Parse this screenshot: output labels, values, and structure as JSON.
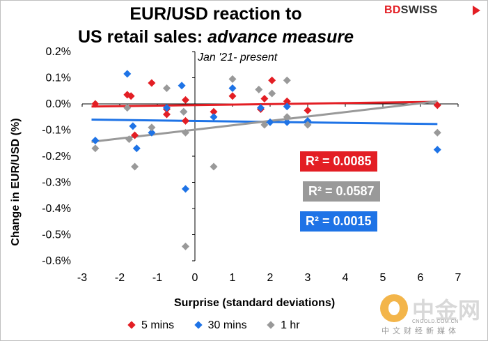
{
  "chart_data": {
    "type": "scatter",
    "title_line1": "EUR/USD reaction to",
    "title_line2_plain": "US retail sales: ",
    "title_line2_italic": "advance measure",
    "subtitle": "Jan '21- present",
    "xlabel": "Surprise (standard deviations)",
    "ylabel": "Change in EUR/USD  (%)",
    "xlim": [
      -3,
      7
    ],
    "ylim": [
      -0.6,
      0.2
    ],
    "x_ticks": [
      -3,
      -2,
      -1,
      0,
      1,
      2,
      3,
      4,
      5,
      6,
      7
    ],
    "x_tick_labels": [
      "-3",
      "-2",
      "-1",
      "0",
      "1",
      "2",
      "3",
      "4",
      "5",
      "6",
      "7"
    ],
    "y_ticks": [
      0.2,
      0.1,
      0.0,
      -0.1,
      -0.2,
      -0.3,
      -0.4,
      -0.5,
      -0.6
    ],
    "y_tick_labels": [
      "0.2%",
      "0.1%",
      "0.0%",
      "-0.1%",
      "-0.2%",
      "-0.3%",
      "-0.4%",
      "-0.5%",
      "-0.6%"
    ],
    "grid": false,
    "series": [
      {
        "name": "5 mins",
        "color": "#e31e24",
        "marker": "diamond",
        "points": [
          [
            -2.65,
            0.0
          ],
          [
            -1.8,
            0.035
          ],
          [
            -1.7,
            0.03
          ],
          [
            -1.6,
            -0.12
          ],
          [
            -1.15,
            0.08
          ],
          [
            -0.75,
            -0.04
          ],
          [
            -0.75,
            -0.02
          ],
          [
            -0.25,
            -0.065
          ],
          [
            -0.25,
            0.015
          ],
          [
            0.5,
            -0.03
          ],
          [
            1.0,
            0.03
          ],
          [
            1.75,
            -0.02
          ],
          [
            1.85,
            0.02
          ],
          [
            2.05,
            0.09
          ],
          [
            2.45,
            0.01
          ],
          [
            3.0,
            -0.025
          ],
          [
            6.45,
            -0.005
          ]
        ],
        "trend": {
          "x": [
            -2.75,
            6.45
          ],
          "y": [
            -0.01,
            0.008
          ]
        },
        "r2_label": "R² = 0.0085"
      },
      {
        "name": "30 mins",
        "color": "#1e73e6",
        "marker": "diamond",
        "points": [
          [
            -2.65,
            -0.14
          ],
          [
            -1.8,
            0.115
          ],
          [
            -1.65,
            -0.085
          ],
          [
            -1.55,
            -0.17
          ],
          [
            -1.15,
            -0.11
          ],
          [
            -0.75,
            -0.015
          ],
          [
            -0.35,
            0.07
          ],
          [
            -0.3,
            -0.03
          ],
          [
            -0.25,
            -0.325
          ],
          [
            0.5,
            -0.05
          ],
          [
            1.0,
            0.06
          ],
          [
            1.75,
            -0.015
          ],
          [
            2.0,
            -0.07
          ],
          [
            2.45,
            -0.07
          ],
          [
            2.45,
            -0.01
          ],
          [
            3.0,
            -0.065
          ],
          [
            6.45,
            -0.175
          ]
        ],
        "trend": {
          "x": [
            -2.75,
            6.45
          ],
          "y": [
            -0.06,
            -0.077
          ]
        },
        "r2_label": "R² = 0.0015"
      },
      {
        "name": "1 hr",
        "color": "#999999",
        "marker": "diamond",
        "points": [
          [
            -2.65,
            -0.17
          ],
          [
            -1.8,
            -0.015
          ],
          [
            -1.75,
            -0.135
          ],
          [
            -1.6,
            -0.24
          ],
          [
            -1.15,
            -0.09
          ],
          [
            -0.75,
            0.06
          ],
          [
            -0.3,
            -0.03
          ],
          [
            -0.25,
            -0.11
          ],
          [
            -0.25,
            -0.545
          ],
          [
            0.5,
            -0.24
          ],
          [
            1.0,
            0.095
          ],
          [
            1.7,
            0.055
          ],
          [
            1.85,
            -0.08
          ],
          [
            2.05,
            0.04
          ],
          [
            2.45,
            0.09
          ],
          [
            2.45,
            -0.05
          ],
          [
            3.0,
            -0.08
          ],
          [
            6.45,
            -0.11
          ]
        ],
        "trend": {
          "x": [
            -2.75,
            6.45
          ],
          "y": [
            -0.145,
            0.01
          ]
        },
        "r2_label": "R² = 0.0587"
      }
    ]
  },
  "branding": {
    "logo_bd": "BD",
    "logo_swiss": "SWISS",
    "watermark_cn": "中金网",
    "watermark_url": "CNGOLD.COM.CN",
    "watermark_sub": "中文财经新媒体"
  },
  "colors": {
    "red": "#e31e24",
    "blue": "#1e73e6",
    "grey": "#999999"
  }
}
